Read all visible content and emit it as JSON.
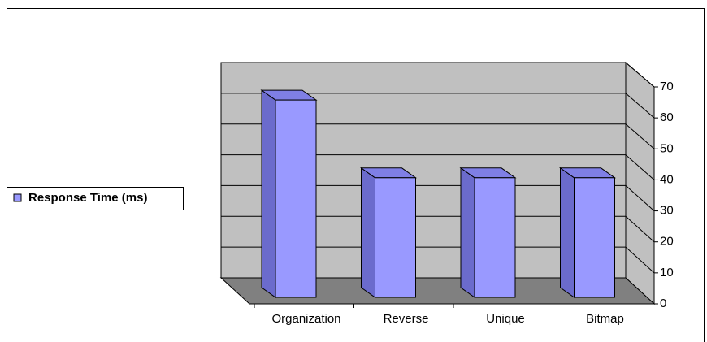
{
  "chart_data": {
    "type": "bar3d",
    "categories": [
      "Organization",
      "Reverse",
      "Unique",
      "Bitmap"
    ],
    "series": [
      {
        "name": "Response Time (ms)",
        "color": "#9999ff",
        "values": [
          66,
          40,
          40,
          40
        ]
      }
    ],
    "ylim": [
      0,
      70
    ],
    "yticks": [
      0,
      10,
      20,
      30,
      40,
      50,
      60,
      70
    ],
    "grid": true,
    "legend": "left"
  }
}
